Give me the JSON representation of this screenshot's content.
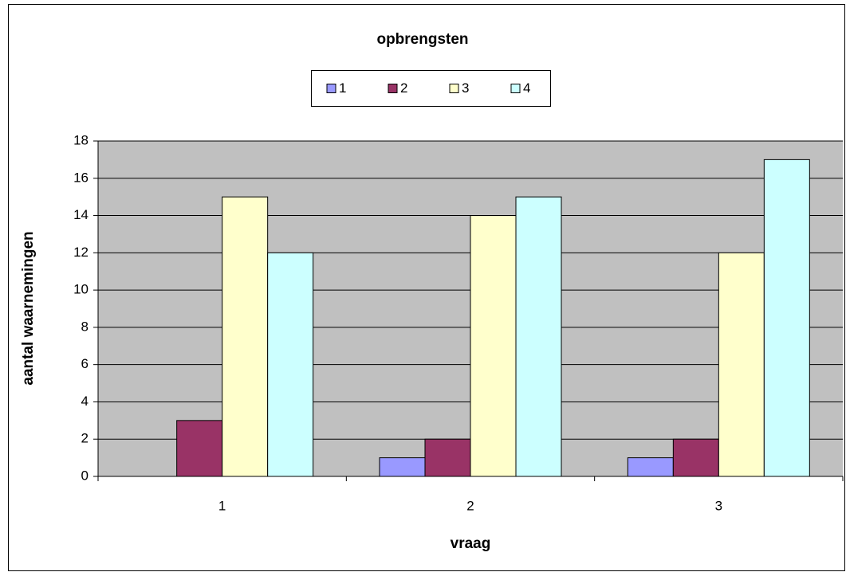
{
  "chart_data": {
    "type": "bar",
    "title": "opbrengsten",
    "x_label": "vraag",
    "y_label": "aantal waarnemingen",
    "categories": [
      "1",
      "2",
      "3"
    ],
    "series": [
      {
        "name": "1",
        "color": "#9999ff",
        "values": [
          0,
          1,
          1
        ]
      },
      {
        "name": "2",
        "color": "#993366",
        "values": [
          3,
          2,
          2
        ]
      },
      {
        "name": "3",
        "color": "#ffffcc",
        "values": [
          15,
          14,
          12
        ]
      },
      {
        "name": "4",
        "color": "#ccffff",
        "values": [
          12,
          15,
          17
        ]
      }
    ],
    "ylim": [
      0,
      18
    ],
    "yticks": [
      0,
      2,
      4,
      6,
      8,
      10,
      12,
      14,
      16,
      18
    ],
    "grid": true,
    "legend": "top"
  }
}
